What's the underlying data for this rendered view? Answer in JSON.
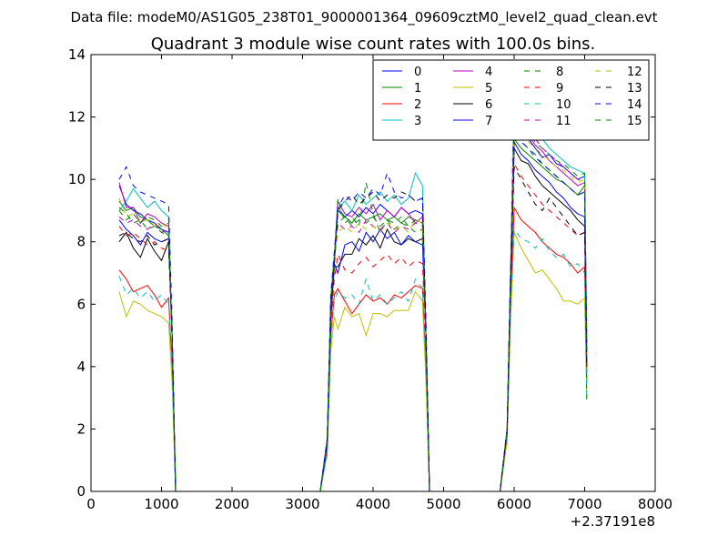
{
  "figure": {
    "suptitle": "Data file: modeM0/AS1G05_238T01_9000001364_09609cztM0_level2_quad_clean.evt"
  },
  "chart_data": {
    "type": "line",
    "title": "Quadrant 3 module wise count rates with 100.0s bins.",
    "xlabel": "",
    "ylabel": "",
    "x_offset_label": "+2.37191e8",
    "xlim": [
      0,
      8000
    ],
    "ylim": [
      0,
      14
    ],
    "xticks": [
      0,
      1000,
      2000,
      3000,
      4000,
      5000,
      6000,
      7000,
      8000
    ],
    "yticks": [
      0,
      2,
      4,
      6,
      8,
      10,
      12,
      14
    ],
    "grid": false,
    "legend": {
      "placement": "top-right",
      "columns": 4
    },
    "x": [
      400,
      500,
      600,
      700,
      800,
      900,
      1000,
      1100,
      1150,
      1200,
      1250,
      1500,
      2000,
      2500,
      3000,
      3250,
      3350,
      3400,
      3450,
      3500,
      3600,
      3700,
      3800,
      3900,
      4000,
      4100,
      4200,
      4300,
      4400,
      4500,
      4600,
      4700,
      4750,
      4800,
      4850,
      5000,
      5500,
      5800,
      5900,
      5950,
      6000,
      6100,
      6200,
      6300,
      6400,
      6500,
      6600,
      6700,
      6800,
      6900,
      7000,
      7030
    ],
    "series": [
      {
        "name": "0",
        "color": "#0000ff",
        "style": "solid",
        "values": [
          9.8,
          9.2,
          9.0,
          8.9,
          8.7,
          8.6,
          8.4,
          8.3,
          5.0,
          0,
          0,
          0,
          0,
          0,
          0,
          0,
          1.6,
          6.0,
          7.3,
          9.0,
          8.8,
          9.0,
          8.8,
          9.1,
          8.9,
          9.2,
          9.0,
          8.8,
          9.1,
          8.9,
          9.0,
          8.9,
          5.0,
          0,
          0,
          0,
          0,
          0,
          2.0,
          7.0,
          11.8,
          11.6,
          11.3,
          11.0,
          10.7,
          10.8,
          10.5,
          10.4,
          10.2,
          10.0,
          10.1,
          5.0
        ]
      },
      {
        "name": "1",
        "color": "#008000",
        "style": "solid",
        "values": [
          9.3,
          9.0,
          9.1,
          8.8,
          8.7,
          8.5,
          8.4,
          8.2,
          5.0,
          0,
          0,
          0,
          0,
          0,
          0,
          0,
          1.6,
          6.0,
          7.3,
          9.1,
          8.8,
          8.6,
          8.9,
          8.7,
          8.8,
          8.9,
          8.7,
          8.8,
          8.6,
          8.8,
          8.7,
          8.6,
          5.0,
          0,
          0,
          0,
          0,
          0,
          2.0,
          7.0,
          11.3,
          11.0,
          10.8,
          10.6,
          10.4,
          10.2,
          10.0,
          9.9,
          9.7,
          9.5,
          9.8,
          3.5
        ]
      },
      {
        "name": "2",
        "color": "#ff0000",
        "style": "solid",
        "values": [
          7.1,
          6.8,
          6.4,
          6.5,
          6.6,
          6.3,
          5.9,
          6.2,
          4.0,
          0,
          0,
          0,
          0,
          0,
          0,
          0,
          1.3,
          5.0,
          6.3,
          6.5,
          6.1,
          5.7,
          6.0,
          6.3,
          6.1,
          6.2,
          6.0,
          6.3,
          6.2,
          6.4,
          6.6,
          6.5,
          4.0,
          0,
          0,
          0,
          0,
          0,
          1.8,
          6.0,
          9.1,
          8.7,
          8.5,
          8.3,
          8.0,
          7.8,
          7.6,
          7.5,
          7.3,
          7.0,
          7.2,
          3.8
        ]
      },
      {
        "name": "3",
        "color": "#00bfbf",
        "style": "solid",
        "values": [
          9.0,
          9.3,
          9.7,
          9.4,
          9.1,
          9.3,
          9.0,
          8.8,
          5.0,
          0,
          0,
          0,
          0,
          0,
          0,
          0,
          1.7,
          6.2,
          7.6,
          9.1,
          9.3,
          9.0,
          9.5,
          9.2,
          9.4,
          9.6,
          9.3,
          9.5,
          9.2,
          9.4,
          10.2,
          9.8,
          5.0,
          0,
          0,
          0,
          0,
          0,
          2.0,
          7.0,
          12.5,
          12.2,
          11.9,
          11.6,
          11.3,
          11.0,
          10.8,
          10.6,
          10.4,
          10.3,
          10.2,
          4.5
        ]
      },
      {
        "name": "4",
        "color": "#bf00bf",
        "style": "solid",
        "values": [
          9.9,
          9.1,
          9.1,
          8.6,
          8.9,
          8.8,
          8.6,
          8.5,
          5.0,
          0,
          0,
          0,
          0,
          0,
          0,
          0,
          1.7,
          6.1,
          7.5,
          9.3,
          8.9,
          8.8,
          9.1,
          8.9,
          9.2,
          8.7,
          9.0,
          8.8,
          9.1,
          8.9,
          8.6,
          8.8,
          5.0,
          0,
          0,
          0,
          0,
          0,
          2.0,
          7.0,
          12.0,
          11.7,
          11.4,
          11.1,
          10.9,
          10.6,
          10.4,
          10.2,
          10.0,
          9.8,
          9.9,
          4.5
        ]
      },
      {
        "name": "5",
        "color": "#bfbf00",
        "style": "solid",
        "values": [
          6.4,
          5.6,
          6.1,
          6.0,
          5.8,
          5.7,
          5.6,
          5.4,
          3.5,
          0,
          0,
          0,
          0,
          0,
          0,
          0,
          1.2,
          4.5,
          5.6,
          5.2,
          5.9,
          5.6,
          5.7,
          5.0,
          5.7,
          5.7,
          5.6,
          5.8,
          5.8,
          5.8,
          6.4,
          6.1,
          3.5,
          0,
          0,
          0,
          0,
          0,
          1.6,
          5.5,
          8.3,
          7.8,
          7.4,
          7.0,
          7.1,
          6.8,
          6.5,
          6.1,
          6.1,
          6.0,
          6.2,
          3.0
        ]
      },
      {
        "name": "6",
        "color": "#000000",
        "style": "solid",
        "values": [
          8.0,
          8.3,
          7.8,
          7.5,
          8.1,
          7.7,
          7.4,
          8.0,
          5.0,
          0,
          0,
          0,
          0,
          0,
          0,
          0,
          1.5,
          5.5,
          7.2,
          7.2,
          7.6,
          7.6,
          8.1,
          7.9,
          8.2,
          7.8,
          8.4,
          8.0,
          7.9,
          8.1,
          8.0,
          8.1,
          5.0,
          0,
          0,
          0,
          0,
          0,
          1.9,
          6.5,
          11.0,
          10.6,
          10.5,
          10.1,
          9.8,
          9.6,
          9.4,
          9.2,
          9.0,
          8.7,
          8.5,
          4.0
        ]
      },
      {
        "name": "7",
        "color": "#0000ff",
        "style": "solid",
        "values": [
          8.7,
          8.4,
          8.2,
          7.9,
          8.3,
          8.1,
          8.0,
          8.1,
          5.0,
          0,
          0,
          0,
          0,
          0,
          0,
          0,
          1.5,
          5.8,
          7.3,
          7.0,
          7.9,
          8.0,
          7.7,
          8.3,
          8.0,
          8.4,
          8.1,
          8.3,
          7.9,
          8.2,
          8.0,
          7.9,
          5.0,
          0,
          0,
          0,
          0,
          0,
          1.9,
          6.5,
          11.2,
          10.8,
          10.6,
          10.3,
          10.1,
          9.9,
          9.6,
          9.4,
          9.1,
          8.9,
          8.8,
          4.0
        ]
      },
      {
        "name": "8",
        "color": "#008000",
        "style": "dashed",
        "values": [
          9.1,
          8.9,
          8.6,
          8.7,
          8.4,
          8.5,
          8.3,
          8.2,
          5.0,
          0,
          0,
          0,
          0,
          0,
          0,
          0,
          1.6,
          6.0,
          7.4,
          9.4,
          8.6,
          8.8,
          8.5,
          9.9,
          8.9,
          8.3,
          8.7,
          8.4,
          8.6,
          8.5,
          8.3,
          8.4,
          5.0,
          0,
          0,
          0,
          0,
          0,
          2.0,
          7.0,
          11.5,
          11.2,
          11.0,
          10.8,
          10.5,
          10.3,
          10.1,
          9.9,
          9.7,
          9.5,
          9.6,
          2.9
        ]
      },
      {
        "name": "9",
        "color": "#ff0000",
        "style": "dashed",
        "values": [
          8.5,
          8.2,
          8.3,
          8.1,
          7.9,
          8.0,
          7.8,
          7.7,
          5.0,
          0,
          0,
          0,
          0,
          0,
          0,
          0,
          1.4,
          5.3,
          6.8,
          7.6,
          7.1,
          7.0,
          7.3,
          7.5,
          7.2,
          7.4,
          7.6,
          7.3,
          7.5,
          7.2,
          7.4,
          7.3,
          4.5,
          0,
          0,
          0,
          0,
          0,
          1.8,
          6.5,
          10.5,
          10.1,
          9.8,
          9.5,
          9.2,
          9.0,
          8.8,
          8.6,
          8.4,
          8.2,
          8.3,
          3.8
        ]
      },
      {
        "name": "10",
        "color": "#00bfbf",
        "style": "dashed",
        "values": [
          6.9,
          6.3,
          6.5,
          6.2,
          6.4,
          6.1,
          6.3,
          6.0,
          4.0,
          0,
          0,
          0,
          0,
          0,
          0,
          0,
          1.2,
          4.8,
          6.1,
          6.4,
          6.2,
          6.3,
          6.0,
          6.8,
          6.1,
          6.3,
          6.0,
          6.2,
          6.4,
          6.1,
          6.8,
          6.5,
          4.0,
          0,
          0,
          0,
          0,
          0,
          1.8,
          6.0,
          8.4,
          8.1,
          8.0,
          7.8,
          8.1,
          7.7,
          7.5,
          7.6,
          7.2,
          7.3,
          7.0,
          3.0
        ]
      },
      {
        "name": "11",
        "color": "#bf00bf",
        "style": "dashed",
        "values": [
          8.8,
          8.6,
          8.7,
          8.5,
          8.4,
          8.6,
          8.3,
          8.4,
          5.0,
          0,
          0,
          0,
          0,
          0,
          0,
          0,
          1.5,
          5.9,
          7.3,
          8.6,
          8.4,
          8.5,
          8.3,
          8.7,
          8.5,
          8.4,
          8.6,
          8.3,
          8.5,
          8.4,
          8.6,
          8.5,
          5.0,
          0,
          0,
          0,
          0,
          0,
          2.0,
          7.0,
          13.3,
          12.3,
          11.8,
          11.3,
          11.0,
          10.8,
          10.6,
          10.4,
          10.2,
          10.0,
          9.9,
          4.5
        ]
      },
      {
        "name": "12",
        "color": "#bfbf00",
        "style": "dashed",
        "values": [
          9.4,
          8.8,
          8.9,
          8.6,
          8.7,
          8.5,
          8.6,
          8.4,
          5.0,
          0,
          0,
          0,
          0,
          0,
          0,
          0,
          1.6,
          6.0,
          7.4,
          8.3,
          8.5,
          8.3,
          8.6,
          8.4,
          8.5,
          8.3,
          8.6,
          8.4,
          8.5,
          8.3,
          8.7,
          8.6,
          5.0,
          0,
          0,
          0,
          0,
          0,
          2.0,
          7.0,
          11.9,
          11.5,
          11.2,
          11.0,
          10.8,
          10.6,
          10.4,
          10.3,
          10.1,
          9.9,
          10.0,
          4.0
        ]
      },
      {
        "name": "13",
        "color": "#000000",
        "style": "dashed",
        "values": [
          8.2,
          8.3,
          8.1,
          8.0,
          8.2,
          7.9,
          8.0,
          8.1,
          5.0,
          0,
          0,
          0,
          0,
          0,
          0,
          0,
          1.6,
          6.0,
          7.3,
          9.0,
          9.3,
          9.5,
          9.2,
          9.4,
          9.6,
          9.3,
          9.5,
          9.4,
          9.6,
          9.5,
          9.3,
          9.4,
          5.0,
          0,
          0,
          0,
          0,
          0,
          2.0,
          7.0,
          10.4,
          10.0,
          9.6,
          9.2,
          9.0,
          9.4,
          9.1,
          8.8,
          8.5,
          8.2,
          8.3,
          4.0
        ]
      },
      {
        "name": "14",
        "color": "#0000ff",
        "style": "dashed",
        "values": [
          10.0,
          10.4,
          9.8,
          9.6,
          9.5,
          9.4,
          9.3,
          9.2,
          5.5,
          0,
          0,
          0,
          0,
          0,
          0,
          0,
          1.7,
          6.3,
          7.7,
          9.1,
          9.5,
          9.3,
          9.6,
          9.4,
          9.7,
          9.5,
          10.2,
          9.6,
          9.4,
          9.5,
          9.3,
          9.4,
          5.5,
          0,
          0,
          0,
          0,
          0,
          2.0,
          7.0,
          11.5,
          11.2,
          11.0,
          10.7,
          10.5,
          10.3,
          10.1,
          9.9,
          9.7,
          9.5,
          9.6,
          4.5
        ]
      },
      {
        "name": "15",
        "color": "#008000",
        "style": "dashed",
        "values": [
          9.0,
          8.7,
          8.9,
          8.6,
          8.8,
          8.7,
          8.5,
          8.6,
          5.0,
          0,
          0,
          0,
          0,
          0,
          0,
          0,
          1.6,
          6.1,
          7.5,
          8.6,
          8.8,
          8.5,
          8.7,
          8.6,
          8.8,
          8.5,
          8.7,
          8.6,
          8.8,
          8.5,
          8.7,
          8.6,
          5.0,
          0,
          0,
          0,
          0,
          0,
          2.0,
          7.0,
          12.2,
          11.8,
          11.5,
          11.2,
          11.0,
          10.8,
          10.6,
          10.5,
          10.3,
          10.1,
          10.2,
          4.5
        ]
      }
    ]
  }
}
